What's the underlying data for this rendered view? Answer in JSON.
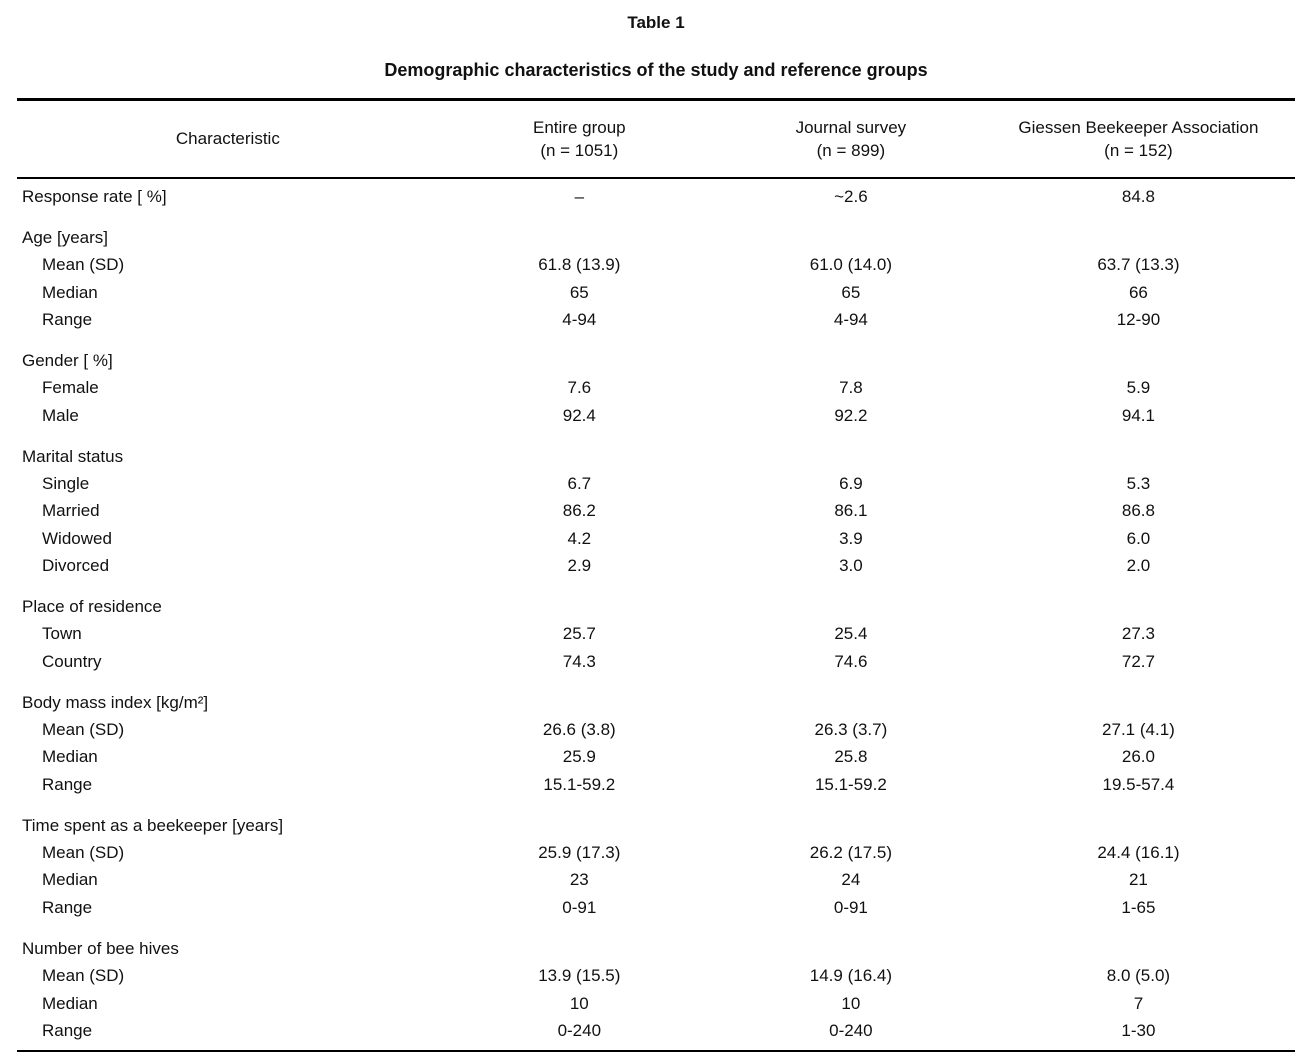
{
  "table": {
    "title": "Table 1",
    "subtitle": "Demographic characteristics of the study and reference groups",
    "columns": [
      {
        "label": "Characteristic",
        "sub": ""
      },
      {
        "label": "Entire group",
        "sub": "(n = 1051)"
      },
      {
        "label": "Journal survey",
        "sub": "(n = 899)"
      },
      {
        "label": "Giessen Beekeeper Association",
        "sub": "(n = 152)"
      }
    ],
    "rows": [
      {
        "label": "Response rate [ %]",
        "indent": false,
        "gap": false,
        "values": [
          "–",
          "~2.6",
          "84.8"
        ]
      },
      {
        "label": "Age [years]",
        "indent": false,
        "gap": true,
        "values": [
          "",
          "",
          ""
        ]
      },
      {
        "label": "Mean (SD)",
        "indent": true,
        "gap": false,
        "values": [
          "61.8 (13.9)",
          "61.0 (14.0)",
          "63.7 (13.3)"
        ]
      },
      {
        "label": "Median",
        "indent": true,
        "gap": false,
        "values": [
          "65",
          "65",
          "66"
        ]
      },
      {
        "label": "Range",
        "indent": true,
        "gap": false,
        "values": [
          "4-94",
          "4-94",
          "12-90"
        ]
      },
      {
        "label": "Gender [ %]",
        "indent": false,
        "gap": true,
        "values": [
          "",
          "",
          ""
        ]
      },
      {
        "label": "Female",
        "indent": true,
        "gap": false,
        "values": [
          "7.6",
          "7.8",
          "5.9"
        ]
      },
      {
        "label": "Male",
        "indent": true,
        "gap": false,
        "values": [
          "92.4",
          "92.2",
          "94.1"
        ]
      },
      {
        "label": "Marital status",
        "indent": false,
        "gap": true,
        "values": [
          "",
          "",
          ""
        ]
      },
      {
        "label": "Single",
        "indent": true,
        "gap": false,
        "values": [
          "6.7",
          "6.9",
          "5.3"
        ]
      },
      {
        "label": "Married",
        "indent": true,
        "gap": false,
        "values": [
          "86.2",
          "86.1",
          "86.8"
        ]
      },
      {
        "label": "Widowed",
        "indent": true,
        "gap": false,
        "values": [
          "4.2",
          "3.9",
          "6.0"
        ]
      },
      {
        "label": "Divorced",
        "indent": true,
        "gap": false,
        "values": [
          "2.9",
          "3.0",
          "2.0"
        ]
      },
      {
        "label": "Place of residence",
        "indent": false,
        "gap": true,
        "values": [
          "",
          "",
          ""
        ]
      },
      {
        "label": "Town",
        "indent": true,
        "gap": false,
        "values": [
          "25.7",
          "25.4",
          "27.3"
        ]
      },
      {
        "label": "Country",
        "indent": true,
        "gap": false,
        "values": [
          "74.3",
          "74.6",
          "72.7"
        ]
      },
      {
        "label": "Body mass index [kg/m²]",
        "indent": false,
        "gap": true,
        "values": [
          "",
          "",
          ""
        ]
      },
      {
        "label": "Mean (SD)",
        "indent": true,
        "gap": false,
        "values": [
          "26.6 (3.8)",
          "26.3 (3.7)",
          "27.1 (4.1)"
        ]
      },
      {
        "label": "Median",
        "indent": true,
        "gap": false,
        "values": [
          "25.9",
          "25.8",
          "26.0"
        ]
      },
      {
        "label": "Range",
        "indent": true,
        "gap": false,
        "values": [
          "15.1-59.2",
          "15.1-59.2",
          "19.5-57.4"
        ]
      },
      {
        "label": "Time spent as a beekeeper [years]",
        "indent": false,
        "gap": true,
        "values": [
          "",
          "",
          ""
        ]
      },
      {
        "label": "Mean (SD)",
        "indent": true,
        "gap": false,
        "values": [
          "25.9 (17.3)",
          "26.2 (17.5)",
          "24.4 (16.1)"
        ]
      },
      {
        "label": "Median",
        "indent": true,
        "gap": false,
        "values": [
          "23",
          "24",
          "21"
        ]
      },
      {
        "label": "Range",
        "indent": true,
        "gap": false,
        "values": [
          "0-91",
          "0-91",
          "1-65"
        ]
      },
      {
        "label": "Number of bee hives",
        "indent": false,
        "gap": true,
        "values": [
          "",
          "",
          ""
        ]
      },
      {
        "label": "Mean (SD)",
        "indent": true,
        "gap": false,
        "values": [
          "13.9 (15.5)",
          "14.9 (16.4)",
          "8.0 (5.0)"
        ]
      },
      {
        "label": "Median",
        "indent": true,
        "gap": false,
        "values": [
          "10",
          "10",
          "7"
        ]
      },
      {
        "label": "Range",
        "indent": true,
        "gap": false,
        "values": [
          "0-240",
          "0-240",
          "1-30"
        ]
      }
    ]
  }
}
